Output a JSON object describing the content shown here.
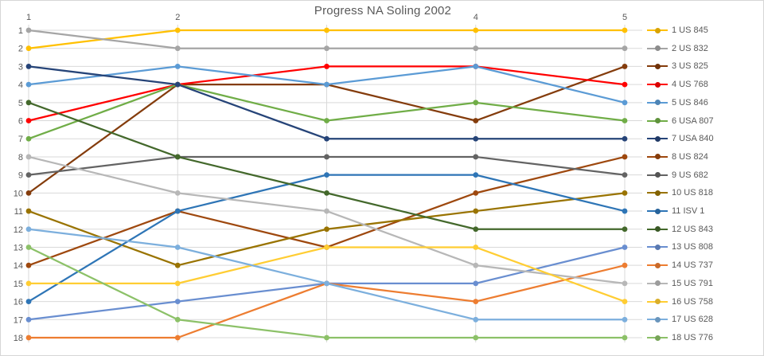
{
  "title": "Progress NA Soling 2002",
  "colors": {
    "background": "#FFFFFF",
    "border": "#D6D6D6",
    "grid": "#D9D9D9",
    "axis_text": "#595959",
    "title_text": "#595959"
  },
  "chart_data": {
    "type": "line",
    "subtype": "bump-ranking-chart",
    "title": "Progress NA Soling 2002",
    "xlabel": "",
    "ylabel": "",
    "x": [
      1,
      2,
      3,
      4,
      5
    ],
    "x_tick_labels_shown": [
      "1",
      "2",
      "4",
      "5"
    ],
    "x_tick_label_hidden_by_title": "3",
    "y_axis": {
      "min": 1,
      "max": 18,
      "reversed": true,
      "tick_labels": [
        "1",
        "2",
        "3",
        "4",
        "5",
        "6",
        "7",
        "8",
        "9",
        "10",
        "11",
        "12",
        "13",
        "14",
        "15",
        "16",
        "17",
        "18"
      ]
    },
    "grid": true,
    "legend_position": "right",
    "series": [
      {
        "name": "1 US 845",
        "color": "#FFC000",
        "ranks": [
          2,
          1,
          1,
          1,
          1
        ]
      },
      {
        "name": "2 US 832",
        "color": "#A5A5A5",
        "ranks": [
          1,
          2,
          2,
          2,
          2
        ]
      },
      {
        "name": "3 US 825",
        "color": "#843C0C",
        "ranks": [
          10,
          4,
          4,
          6,
          3
        ]
      },
      {
        "name": "4 US 768",
        "color": "#FF0000",
        "ranks": [
          6,
          4,
          3,
          3,
          4
        ]
      },
      {
        "name": "5 US 846",
        "color": "#5B9BD5",
        "ranks": [
          4,
          3,
          4,
          3,
          5
        ]
      },
      {
        "name": "6 USA 807",
        "color": "#70AD47",
        "ranks": [
          7,
          4,
          6,
          5,
          6
        ]
      },
      {
        "name": "7 USA 840",
        "color": "#264478",
        "ranks": [
          3,
          4,
          7,
          7,
          7
        ]
      },
      {
        "name": "8 US 824",
        "color": "#9E480E",
        "ranks": [
          14,
          11,
          13,
          10,
          8
        ]
      },
      {
        "name": "9 US 682",
        "color": "#636363",
        "ranks": [
          9,
          8,
          8,
          8,
          9
        ]
      },
      {
        "name": "10 US 818",
        "color": "#997300",
        "ranks": [
          11,
          14,
          12,
          11,
          10
        ]
      },
      {
        "name": "11 ISV 1",
        "color": "#2E75B6",
        "ranks": [
          16,
          11,
          9,
          9,
          11
        ]
      },
      {
        "name": "12 US 843",
        "color": "#43682B",
        "ranks": [
          5,
          8,
          10,
          12,
          12
        ]
      },
      {
        "name": "13 US 808",
        "color": "#698ED0",
        "ranks": [
          17,
          16,
          15,
          15,
          13
        ]
      },
      {
        "name": "14 US 737",
        "color": "#ED7D31",
        "ranks": [
          18,
          18,
          15,
          16,
          14
        ]
      },
      {
        "name": "15 US 791",
        "color": "#B7B7B7",
        "ranks": [
          8,
          10,
          11,
          14,
          15
        ]
      },
      {
        "name": "16 US 758",
        "color": "#FFCD33",
        "ranks": [
          15,
          15,
          13,
          13,
          16
        ]
      },
      {
        "name": "17 US 628",
        "color": "#7CAFDD",
        "ranks": [
          12,
          13,
          15,
          17,
          17
        ]
      },
      {
        "name": "18 US 776",
        "color": "#8CC168",
        "ranks": [
          13,
          17,
          18,
          18,
          18
        ]
      }
    ]
  }
}
